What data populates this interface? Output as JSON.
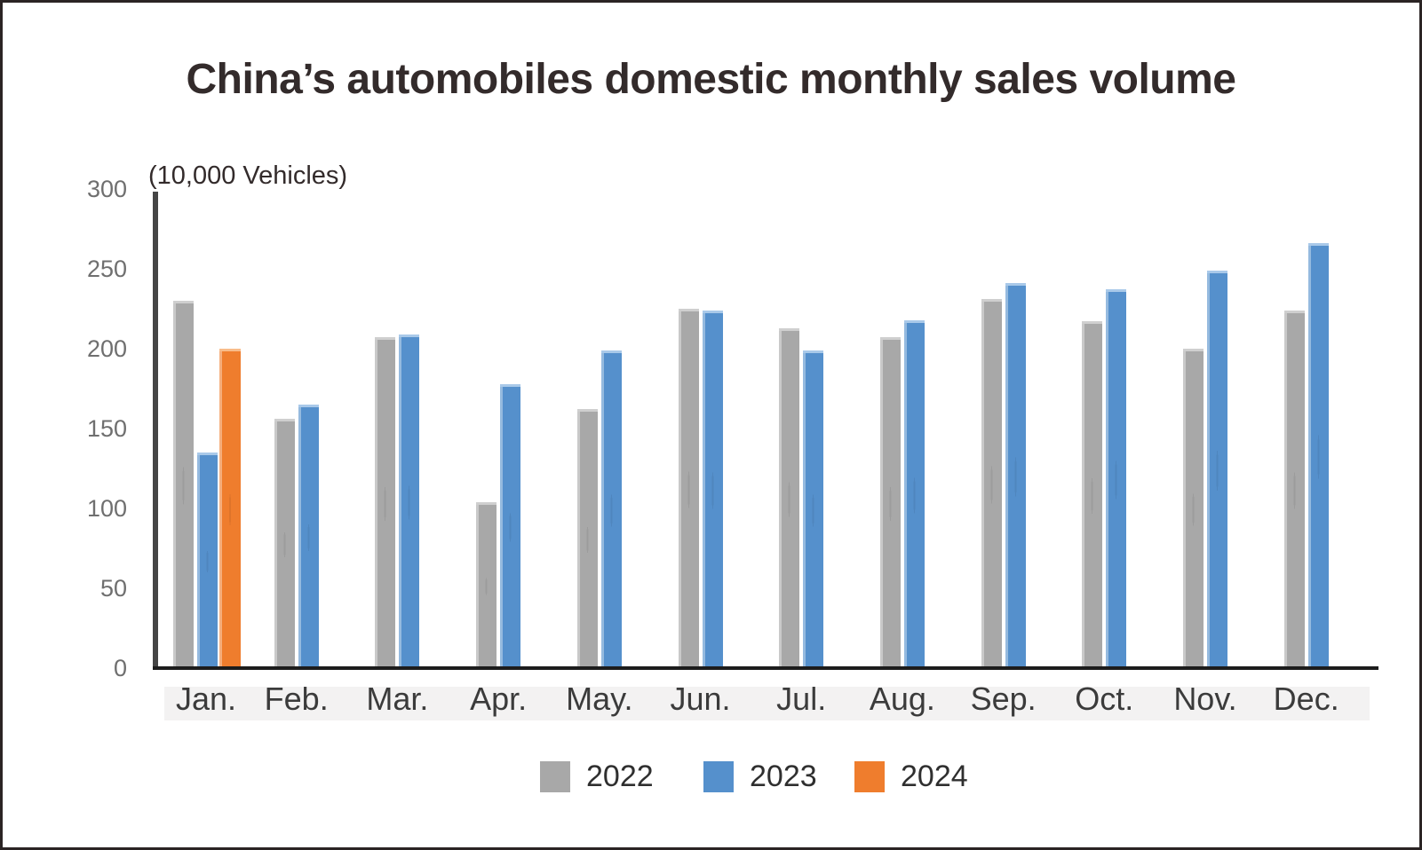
{
  "title": "China’s automobiles domestic monthly sales volume",
  "unit_label": "(10,000 Vehicles)",
  "colors": {
    "series_2022": "#a8a8a8",
    "series_2022_light": "#cfcfcf",
    "series_2023": "#5590cc",
    "series_2023_light": "#a9c9e9",
    "series_2024": "#ef7d2d",
    "series_2024_light": "#f8bc8a",
    "axis": "#454545",
    "baseline": "#1c1c1c",
    "tick_text": "#6f6f6f",
    "border": "#2b2424"
  },
  "chart_data": {
    "type": "bar",
    "title": "China’s automobiles domestic monthly sales volume",
    "ylabel": "(10,000 Vehicles)",
    "xlabel": "",
    "ylim": [
      0,
      300
    ],
    "yticks": [
      0,
      50,
      100,
      150,
      200,
      250,
      300
    ],
    "grid": false,
    "legend_position": "bottom",
    "categories": [
      "Jan.",
      "Feb.",
      "Mar.",
      "Apr.",
      "May.",
      "Jun.",
      "Jul.",
      "Aug.",
      "Sep.",
      "Oct.",
      "Nov.",
      "Dec."
    ],
    "series": [
      {
        "name": "2022",
        "color": "#a8a8a8",
        "values": [
          230,
          156,
          207,
          104,
          162,
          225,
          213,
          207,
          231,
          217,
          200,
          224
        ]
      },
      {
        "name": "2023",
        "color": "#5590cc",
        "values": [
          135,
          165,
          209,
          178,
          199,
          224,
          199,
          218,
          241,
          237,
          249,
          266
        ]
      },
      {
        "name": "2024",
        "color": "#ef7d2d",
        "values": [
          200,
          null,
          null,
          null,
          null,
          null,
          null,
          null,
          null,
          null,
          null,
          null
        ]
      }
    ]
  }
}
